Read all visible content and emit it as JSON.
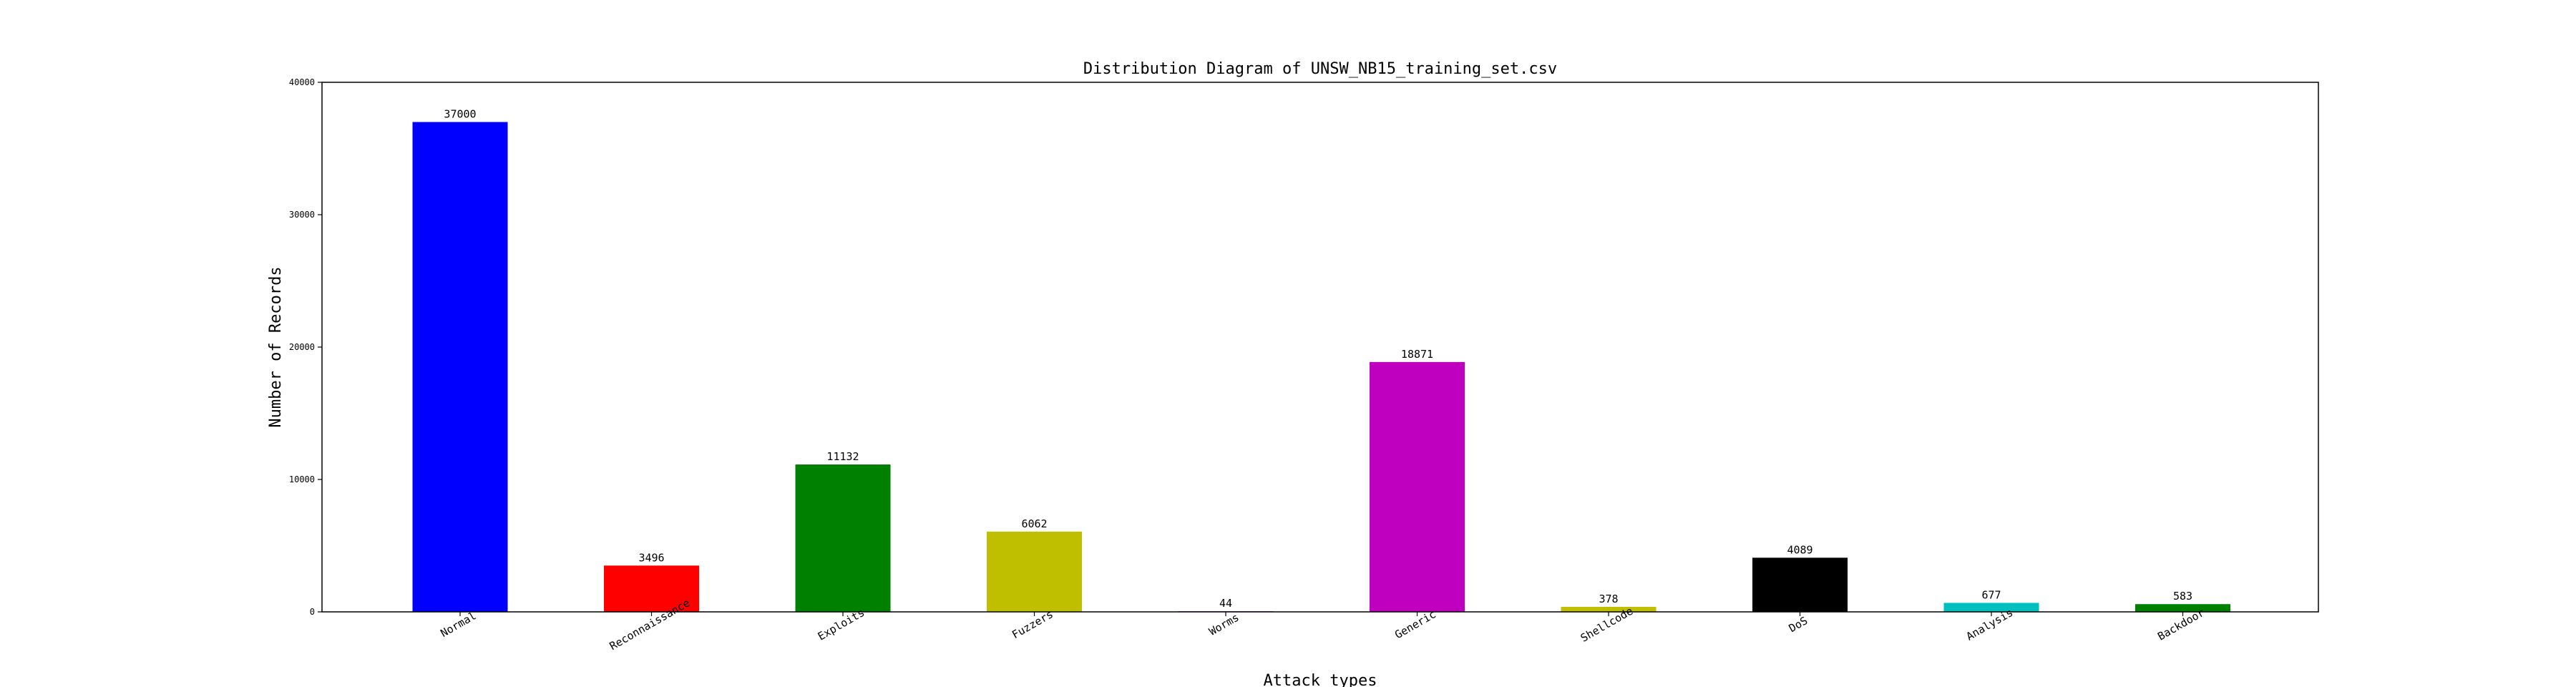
{
  "chart_data": {
    "type": "bar",
    "title": "Distribution Diagram of UNSW_NB15_training_set.csv",
    "xlabel": "Attack types",
    "ylabel": "Number of Records",
    "categories": [
      "Normal",
      "Reconnaissance",
      "Exploits",
      "Fuzzers",
      "Worms",
      "Generic",
      "Shellcode",
      "DoS",
      "Analysis",
      "Backdoor"
    ],
    "values": [
      37000,
      3496,
      11132,
      6062,
      44,
      18871,
      378,
      4089,
      677,
      583
    ],
    "bar_colors": [
      "#0000ff",
      "#ff0000",
      "#008000",
      "#bfbf00",
      "#bf00bf",
      "#bf00bf",
      "#bfbf00",
      "#000000",
      "#00bfbf",
      "#008000"
    ],
    "ylim": [
      0,
      40000
    ],
    "yticks": [
      0,
      10000,
      20000,
      30000,
      40000
    ],
    "grid": false,
    "legend": "none"
  }
}
